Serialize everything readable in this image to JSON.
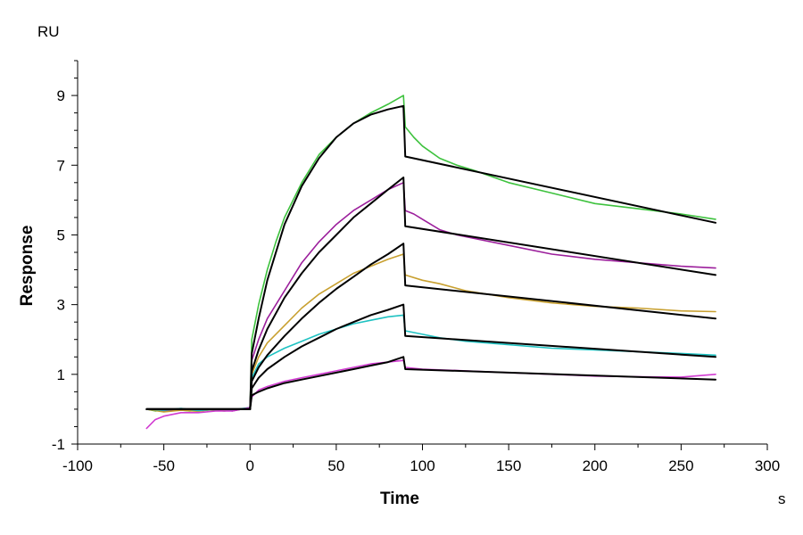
{
  "chart_data": {
    "type": "line",
    "xlabel": "Time",
    "ylabel": "Response",
    "x_unit": "s",
    "y_unit": "RU",
    "xlim": [
      -100,
      300
    ],
    "ylim": [
      -1,
      10
    ],
    "x_ticks": [
      -100,
      -50,
      0,
      50,
      100,
      150,
      200,
      250,
      300
    ],
    "y_ticks": [
      -1,
      1,
      3,
      5,
      7,
      9
    ],
    "grid": false,
    "legend": "none",
    "series": [
      {
        "color": "#3ec23e",
        "points": [
          [
            -60,
            0
          ],
          [
            -55,
            -0.05
          ],
          [
            -45,
            0
          ],
          [
            -35,
            -0.05
          ],
          [
            -25,
            0
          ],
          [
            -15,
            -0.05
          ],
          [
            -5,
            0
          ],
          [
            0,
            0.05
          ],
          [
            1,
            2.0
          ],
          [
            5,
            3.0
          ],
          [
            10,
            4.0
          ],
          [
            15,
            4.8
          ],
          [
            20,
            5.5
          ],
          [
            30,
            6.5
          ],
          [
            40,
            7.3
          ],
          [
            50,
            7.8
          ],
          [
            60,
            8.2
          ],
          [
            70,
            8.5
          ],
          [
            80,
            8.75
          ],
          [
            89,
            9.0
          ],
          [
            90,
            8.1
          ],
          [
            95,
            7.8
          ],
          [
            100,
            7.55
          ],
          [
            110,
            7.2
          ],
          [
            120,
            7.0
          ],
          [
            130,
            6.85
          ],
          [
            150,
            6.5
          ],
          [
            175,
            6.2
          ],
          [
            200,
            5.9
          ],
          [
            225,
            5.75
          ],
          [
            250,
            5.6
          ],
          [
            270,
            5.45
          ]
        ]
      },
      {
        "color": "#9c1f9c",
        "points": [
          [
            -60,
            0
          ],
          [
            -50,
            -0.05
          ],
          [
            -40,
            0
          ],
          [
            -30,
            -0.05
          ],
          [
            -20,
            0
          ],
          [
            -10,
            -0.05
          ],
          [
            0,
            0.05
          ],
          [
            1,
            1.4
          ],
          [
            5,
            2.0
          ],
          [
            10,
            2.6
          ],
          [
            20,
            3.4
          ],
          [
            30,
            4.2
          ],
          [
            40,
            4.8
          ],
          [
            50,
            5.3
          ],
          [
            60,
            5.7
          ],
          [
            70,
            6.0
          ],
          [
            80,
            6.3
          ],
          [
            89,
            6.5
          ],
          [
            90,
            5.7
          ],
          [
            95,
            5.6
          ],
          [
            100,
            5.45
          ],
          [
            110,
            5.15
          ],
          [
            120,
            5.0
          ],
          [
            150,
            4.7
          ],
          [
            175,
            4.45
          ],
          [
            200,
            4.3
          ],
          [
            225,
            4.2
          ],
          [
            250,
            4.1
          ],
          [
            270,
            4.05
          ]
        ]
      },
      {
        "color": "#c8a030",
        "points": [
          [
            -60,
            0
          ],
          [
            -50,
            -0.08
          ],
          [
            -40,
            -0.03
          ],
          [
            -30,
            -0.06
          ],
          [
            -20,
            0
          ],
          [
            -10,
            -0.04
          ],
          [
            0,
            0.05
          ],
          [
            1,
            1.0
          ],
          [
            5,
            1.5
          ],
          [
            10,
            1.9
          ],
          [
            20,
            2.4
          ],
          [
            30,
            2.9
          ],
          [
            40,
            3.3
          ],
          [
            50,
            3.6
          ],
          [
            60,
            3.9
          ],
          [
            70,
            4.1
          ],
          [
            80,
            4.3
          ],
          [
            89,
            4.45
          ],
          [
            90,
            3.85
          ],
          [
            100,
            3.7
          ],
          [
            110,
            3.6
          ],
          [
            125,
            3.4
          ],
          [
            150,
            3.2
          ],
          [
            175,
            3.05
          ],
          [
            200,
            2.95
          ],
          [
            225,
            2.9
          ],
          [
            250,
            2.82
          ],
          [
            270,
            2.8
          ]
        ]
      },
      {
        "color": "#1fc2c2",
        "points": [
          [
            -60,
            0
          ],
          [
            -50,
            -0.03
          ],
          [
            -40,
            0.02
          ],
          [
            -30,
            -0.04
          ],
          [
            -20,
            0
          ],
          [
            -10,
            -0.02
          ],
          [
            0,
            0.05
          ],
          [
            1,
            0.9
          ],
          [
            5,
            1.3
          ],
          [
            10,
            1.5
          ],
          [
            20,
            1.75
          ],
          [
            30,
            1.95
          ],
          [
            40,
            2.15
          ],
          [
            50,
            2.3
          ],
          [
            60,
            2.45
          ],
          [
            70,
            2.55
          ],
          [
            80,
            2.65
          ],
          [
            89,
            2.7
          ],
          [
            90,
            2.25
          ],
          [
            100,
            2.15
          ],
          [
            110,
            2.05
          ],
          [
            125,
            1.95
          ],
          [
            150,
            1.85
          ],
          [
            175,
            1.75
          ],
          [
            200,
            1.7
          ],
          [
            225,
            1.65
          ],
          [
            250,
            1.6
          ],
          [
            270,
            1.55
          ]
        ]
      },
      {
        "color": "#d23cd2",
        "points": [
          [
            -60,
            -0.55
          ],
          [
            -55,
            -0.3
          ],
          [
            -50,
            -0.2
          ],
          [
            -40,
            -0.1
          ],
          [
            -30,
            -0.1
          ],
          [
            -20,
            -0.05
          ],
          [
            -10,
            -0.05
          ],
          [
            0,
            0.05
          ],
          [
            1,
            0.35
          ],
          [
            5,
            0.55
          ],
          [
            10,
            0.65
          ],
          [
            20,
            0.8
          ],
          [
            30,
            0.9
          ],
          [
            40,
            1.0
          ],
          [
            50,
            1.1
          ],
          [
            60,
            1.2
          ],
          [
            70,
            1.3
          ],
          [
            80,
            1.35
          ],
          [
            89,
            1.4
          ],
          [
            90,
            1.2
          ],
          [
            100,
            1.15
          ],
          [
            125,
            1.1
          ],
          [
            150,
            1.05
          ],
          [
            175,
            1.0
          ],
          [
            200,
            0.95
          ],
          [
            225,
            0.93
          ],
          [
            250,
            0.92
          ],
          [
            270,
            1.0
          ]
        ]
      },
      {
        "color": "#000000",
        "points": [
          [
            -60,
            0
          ],
          [
            0,
            0
          ],
          [
            1,
            1.6
          ],
          [
            5,
            2.6
          ],
          [
            10,
            3.7
          ],
          [
            20,
            5.3
          ],
          [
            30,
            6.4
          ],
          [
            40,
            7.2
          ],
          [
            50,
            7.8
          ],
          [
            60,
            8.2
          ],
          [
            70,
            8.45
          ],
          [
            80,
            8.6
          ],
          [
            89,
            8.7
          ],
          [
            90,
            7.25
          ],
          [
            270,
            5.35
          ]
        ]
      },
      {
        "color": "#000000",
        "points": [
          [
            -60,
            0
          ],
          [
            0,
            0
          ],
          [
            1,
            1.1
          ],
          [
            5,
            1.7
          ],
          [
            10,
            2.3
          ],
          [
            20,
            3.2
          ],
          [
            30,
            3.9
          ],
          [
            40,
            4.5
          ],
          [
            50,
            5.0
          ],
          [
            60,
            5.5
          ],
          [
            70,
            5.9
          ],
          [
            80,
            6.3
          ],
          [
            89,
            6.65
          ],
          [
            90,
            5.25
          ],
          [
            270,
            3.85
          ]
        ]
      },
      {
        "color": "#000000",
        "points": [
          [
            -60,
            0
          ],
          [
            0,
            0
          ],
          [
            1,
            0.8
          ],
          [
            5,
            1.2
          ],
          [
            10,
            1.55
          ],
          [
            20,
            2.1
          ],
          [
            30,
            2.6
          ],
          [
            40,
            3.05
          ],
          [
            50,
            3.45
          ],
          [
            60,
            3.8
          ],
          [
            70,
            4.15
          ],
          [
            80,
            4.45
          ],
          [
            89,
            4.75
          ],
          [
            90,
            3.55
          ],
          [
            270,
            2.6
          ]
        ]
      },
      {
        "color": "#000000",
        "points": [
          [
            -60,
            0
          ],
          [
            0,
            0
          ],
          [
            1,
            0.6
          ],
          [
            5,
            0.9
          ],
          [
            10,
            1.15
          ],
          [
            20,
            1.5
          ],
          [
            30,
            1.8
          ],
          [
            40,
            2.05
          ],
          [
            50,
            2.3
          ],
          [
            60,
            2.5
          ],
          [
            70,
            2.7
          ],
          [
            80,
            2.85
          ],
          [
            89,
            3.0
          ],
          [
            90,
            2.1
          ],
          [
            270,
            1.5
          ]
        ]
      },
      {
        "color": "#000000",
        "points": [
          [
            -60,
            0
          ],
          [
            0,
            0
          ],
          [
            1,
            0.4
          ],
          [
            5,
            0.5
          ],
          [
            10,
            0.6
          ],
          [
            20,
            0.75
          ],
          [
            30,
            0.85
          ],
          [
            40,
            0.95
          ],
          [
            50,
            1.05
          ],
          [
            60,
            1.15
          ],
          [
            70,
            1.25
          ],
          [
            80,
            1.35
          ],
          [
            89,
            1.5
          ],
          [
            90,
            1.15
          ],
          [
            270,
            0.85
          ]
        ]
      }
    ]
  }
}
